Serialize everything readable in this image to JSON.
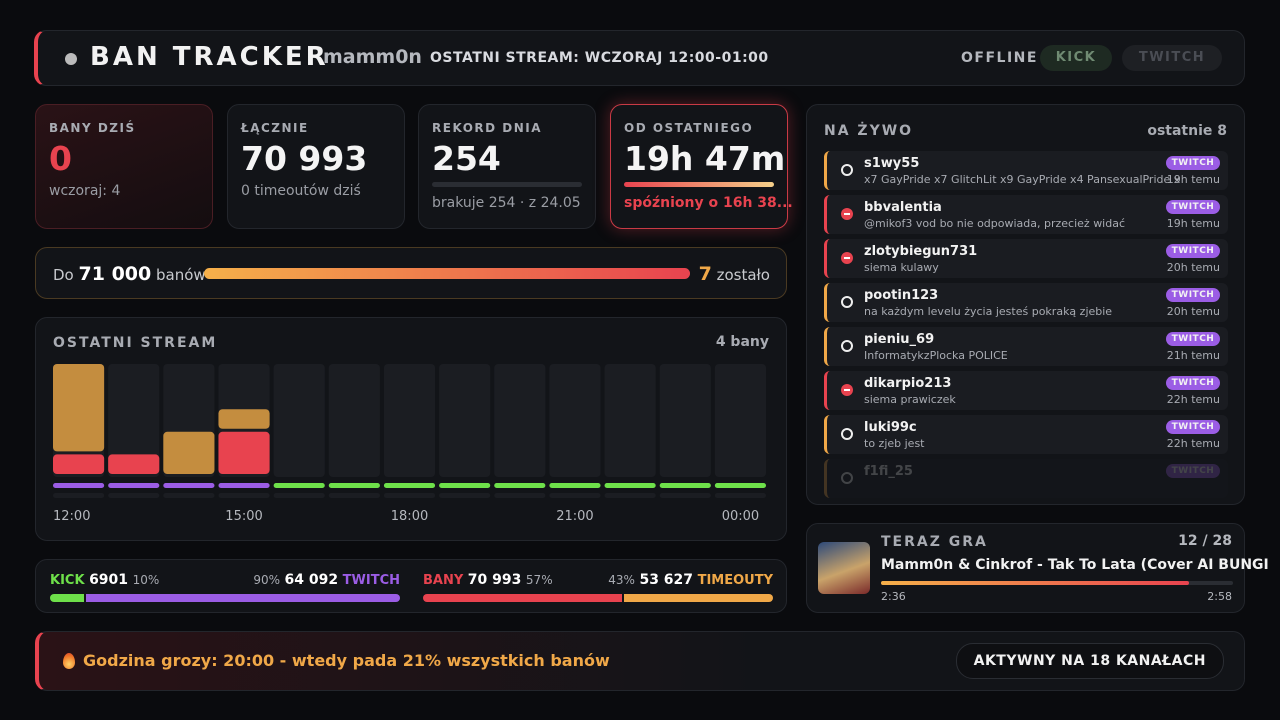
{
  "header": {
    "title": "BAN TRACKER",
    "channel": "mamm0n",
    "last_stream": "OSTATNI STREAM: WCZORAJ 12:00-01:00",
    "status": "OFFLINE",
    "platforms": [
      "KICK",
      "TWITCH"
    ]
  },
  "stats": [
    {
      "label": "BANY DZIŚ",
      "value": "0",
      "sub": "wczoraj: 4"
    },
    {
      "label": "ŁĄCZNIE",
      "value": "70 993",
      "sub": "0 timeoutów dziś"
    },
    {
      "label": "REKORD DNIA",
      "value": "254",
      "sub": "brakuje 254 · z 24.05"
    },
    {
      "label": "OD OSTATNIEGO",
      "value": "19h 47m",
      "sub": "spóźniony o 16h 38..."
    }
  ],
  "goal": {
    "prefix": "Do",
    "target": 71000,
    "target_label": "71 000",
    "suffix": "banów",
    "current": 70993,
    "remaining": 7,
    "remaining_label": "zostało"
  },
  "chart_data": {
    "type": "bar",
    "title": "OSTATNI STREAM",
    "summary": "4 bany",
    "categories": [
      "12:00",
      null,
      null,
      "15:00",
      null,
      null,
      "18:00",
      null,
      null,
      "21:00",
      null,
      null,
      "00:00"
    ],
    "series": [
      {
        "color": "#e8434f",
        "values": [
          1,
          1,
          0,
          2,
          0,
          0,
          0,
          0,
          0,
          0,
          0,
          0,
          0
        ]
      },
      {
        "color": "#c48d3f",
        "values": [
          4,
          0,
          2,
          1,
          0,
          0,
          0,
          0,
          0,
          0,
          0,
          0,
          0
        ]
      }
    ],
    "ylim": [
      0,
      5
    ],
    "platform_colors": [
      "#9b5de5",
      "#9b5de5",
      "#9b5de5",
      "#9b5de5",
      "#6ee04a",
      "#6ee04a",
      "#6ee04a",
      "#6ee04a",
      "#6ee04a",
      "#6ee04a",
      "#6ee04a",
      "#6ee04a",
      "#6ee04a"
    ]
  },
  "splits": [
    {
      "left": {
        "name": "KICK",
        "count": "6901",
        "share": 10,
        "share_label": "10%",
        "color": "#6ee04a"
      },
      "right": {
        "name": "TWITCH",
        "count": "64 092",
        "share": 90,
        "share_label": "90%",
        "color": "#9b5de5"
      }
    },
    {
      "left": {
        "name": "BANY",
        "count": "70 993",
        "share": 57,
        "share_label": "57%",
        "color": "#e8434f"
      },
      "right": {
        "name": "TIMEOUTY",
        "count": "53 627",
        "share": 43,
        "share_label": "43%",
        "color": "#f0a848"
      }
    }
  ],
  "live": {
    "title": "NA ŻYWO",
    "count_label": "ostatnie 8",
    "entries": [
      {
        "user": "s1wy55",
        "message": "x7 GayPride x7 GlitchLit x9 GayPride x4 PansexualPride x",
        "platform": "TWITCH",
        "time": "19h temu",
        "kind": "timeout"
      },
      {
        "user": "bbvalentia",
        "message": "@mikof3 vod bo nie odpowiada, przecież widać",
        "platform": "TWITCH",
        "time": "19h temu",
        "kind": "ban"
      },
      {
        "user": "zlotybiegun731",
        "message": "siema kulawy",
        "platform": "TWITCH",
        "time": "20h temu",
        "kind": "ban"
      },
      {
        "user": "pootin123",
        "message": "na każdym levelu życia jesteś pokraką zjebie",
        "platform": "TWITCH",
        "time": "20h temu",
        "kind": "timeout"
      },
      {
        "user": "pieniu_69",
        "message": "InformatykzPlocka POLICE",
        "platform": "TWITCH",
        "time": "21h temu",
        "kind": "timeout"
      },
      {
        "user": "dikarpio213",
        "message": "siema prawiczek",
        "platform": "TWITCH",
        "time": "22h temu",
        "kind": "ban"
      },
      {
        "user": "luki99c",
        "message": "to zjeb jest",
        "platform": "TWITCH",
        "time": "22h temu",
        "kind": "timeout"
      },
      {
        "user": "f1fi_25",
        "platform": "TWITCH",
        "kind": "timeout"
      }
    ]
  },
  "now_playing": {
    "title": "TERAZ GRA",
    "position": "12 / 28",
    "song": "Mamm0n & Cinkrof - Tak To Lata (Cover AI BUNGI",
    "elapsed": "2:36",
    "duration": "2:58"
  },
  "footer": {
    "text": "Godzina grozy: 20:00 - wtedy pada 21% wszystkich banów",
    "badge": "AKTYWNY NA 18 KANAŁACH"
  }
}
